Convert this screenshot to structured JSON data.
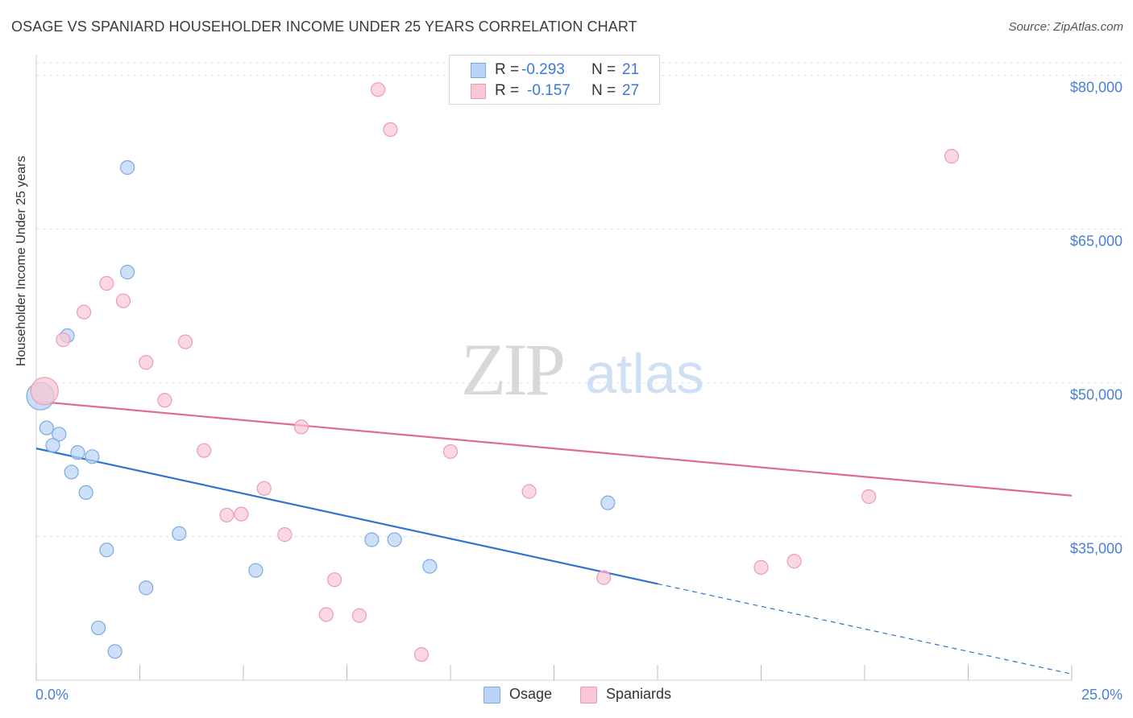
{
  "header": {
    "title": "OSAGE VS SPANIARD HOUSEHOLDER INCOME UNDER 25 YEARS CORRELATION CHART",
    "source": "Source: ZipAtlas.com"
  },
  "watermark": {
    "zip": "ZIP",
    "atlas": "atlas"
  },
  "legend_top": {
    "rows": [
      {
        "r_label": "R =",
        "r_value": "-0.293",
        "n_label": "N =",
        "n_value": "21"
      },
      {
        "r_label": "R =",
        "r_value": "-0.157",
        "n_label": "N =",
        "n_value": "27"
      }
    ]
  },
  "legend_bottom": {
    "items": [
      "Osage",
      "Spaniards"
    ]
  },
  "colors": {
    "osage_fill": "#b8d3f5",
    "osage_stroke": "#7aaae6",
    "osage_line": "#2f74d0",
    "span_fill": "#f8c6d5",
    "span_stroke": "#ec9bb5",
    "span_line": "#e06a92",
    "axis_text": "#4a7fd4",
    "grid": "#e2e2e2"
  },
  "chart_data": {
    "type": "scatter",
    "title": "OSAGE VS SPANIARD HOUSEHOLDER INCOME UNDER 25 YEARS CORRELATION CHART",
    "xlabel": "",
    "ylabel": "Householder Income Under 25 years",
    "xlim": [
      0,
      25
    ],
    "ylim": [
      21000,
      82000
    ],
    "x_tick_labels": [
      "0.0%",
      "25.0%"
    ],
    "y_ticks": [
      {
        "value": 80000,
        "label": "$80,000"
      },
      {
        "value": 65000,
        "label": "$65,000"
      },
      {
        "value": 50000,
        "label": "$50,000"
      },
      {
        "value": 35000,
        "label": "$35,000"
      }
    ],
    "grid": "horizontal dashed",
    "legend": "bottom-center",
    "series": [
      {
        "name": "Osage",
        "r": -0.293,
        "n": 21,
        "points": [
          {
            "x": 0.1,
            "y": 48700,
            "big": true
          },
          {
            "x": 0.75,
            "y": 54600
          },
          {
            "x": 0.25,
            "y": 45600
          },
          {
            "x": 0.55,
            "y": 45000
          },
          {
            "x": 0.4,
            "y": 43900
          },
          {
            "x": 1.0,
            "y": 43200
          },
          {
            "x": 1.35,
            "y": 42800
          },
          {
            "x": 0.85,
            "y": 41300
          },
          {
            "x": 1.2,
            "y": 39300
          },
          {
            "x": 2.2,
            "y": 71000
          },
          {
            "x": 2.2,
            "y": 60800
          },
          {
            "x": 1.7,
            "y": 33700
          },
          {
            "x": 3.45,
            "y": 35300
          },
          {
            "x": 2.65,
            "y": 30000
          },
          {
            "x": 5.3,
            "y": 31700
          },
          {
            "x": 1.5,
            "y": 26100
          },
          {
            "x": 1.9,
            "y": 23800
          },
          {
            "x": 8.1,
            "y": 34700
          },
          {
            "x": 8.65,
            "y": 34700
          },
          {
            "x": 9.5,
            "y": 32100
          },
          {
            "x": 13.8,
            "y": 38300
          }
        ],
        "trend": {
          "x0": 0,
          "y0": 43600,
          "x1": 15.0,
          "y1": 30400,
          "dash_to_x": 25.0,
          "dash_to_y": 21600
        }
      },
      {
        "name": "Spaniards",
        "r": -0.157,
        "n": 27,
        "points": [
          {
            "x": 0.2,
            "y": 49200,
            "big": true
          },
          {
            "x": 0.65,
            "y": 54200
          },
          {
            "x": 1.15,
            "y": 56900
          },
          {
            "x": 1.7,
            "y": 59700
          },
          {
            "x": 2.1,
            "y": 58000
          },
          {
            "x": 2.65,
            "y": 52000
          },
          {
            "x": 3.6,
            "y": 54000
          },
          {
            "x": 3.1,
            "y": 48300
          },
          {
            "x": 8.25,
            "y": 78600
          },
          {
            "x": 8.55,
            "y": 74700
          },
          {
            "x": 22.1,
            "y": 72100
          },
          {
            "x": 6.4,
            "y": 45700
          },
          {
            "x": 4.05,
            "y": 43400
          },
          {
            "x": 10.0,
            "y": 43300
          },
          {
            "x": 5.5,
            "y": 39700
          },
          {
            "x": 4.6,
            "y": 37100
          },
          {
            "x": 4.95,
            "y": 37200
          },
          {
            "x": 11.9,
            "y": 39400
          },
          {
            "x": 20.1,
            "y": 38900
          },
          {
            "x": 6.0,
            "y": 35200
          },
          {
            "x": 7.2,
            "y": 30800
          },
          {
            "x": 13.7,
            "y": 31000
          },
          {
            "x": 17.5,
            "y": 32000
          },
          {
            "x": 18.3,
            "y": 32600
          },
          {
            "x": 7.0,
            "y": 27400
          },
          {
            "x": 7.8,
            "y": 27300
          },
          {
            "x": 9.3,
            "y": 23500
          }
        ],
        "trend": {
          "x0": 0,
          "y0": 48200,
          "x1": 25.0,
          "y1": 39000
        }
      }
    ]
  }
}
